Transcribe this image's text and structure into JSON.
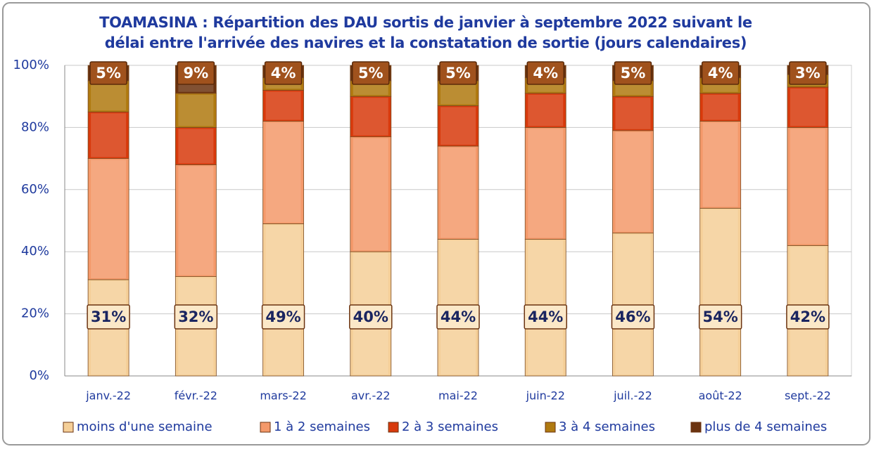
{
  "chart_data": {
    "type": "stacked_bar",
    "title": "TOAMASINA : Répartition des DAU sortis de janvier à septembre 2022 suivant le délai entre l'arrivée des navires et la constatation de sortie (jours calendaires)",
    "categories": [
      "janv.-22",
      "févr.-22",
      "mars-22",
      "avr.-22",
      "mai-22",
      "juin-22",
      "juil.-22",
      "août-22",
      "sept.-22"
    ],
    "series": [
      {
        "name": "moins d'une semaine",
        "color": "#f5cf98",
        "values": [
          31,
          32,
          49,
          40,
          44,
          44,
          46,
          54,
          42
        ],
        "value_labels": [
          "31%",
          "32%",
          "49%",
          "40%",
          "44%",
          "44%",
          "46%",
          "54%",
          "42%"
        ]
      },
      {
        "name": "1 à 2 semaines",
        "color": "#f4996a",
        "values": [
          39,
          36,
          33,
          37,
          30,
          36,
          33,
          28,
          38
        ]
      },
      {
        "name": "2 à 3 semaines",
        "color": "#d83a0c",
        "values": [
          15,
          12,
          10,
          13,
          13,
          11,
          11,
          9,
          13
        ]
      },
      {
        "name": "3 à 4 semaines",
        "color": "#b07a10",
        "values": [
          10,
          11,
          4,
          5,
          8,
          5,
          5,
          5,
          4
        ]
      },
      {
        "name": "plus de 4 semaines",
        "color": "#6b3310",
        "values": [
          5,
          9,
          4,
          5,
          5,
          4,
          5,
          4,
          3
        ],
        "value_labels": [
          "5%",
          "9%",
          "4%",
          "5%",
          "5%",
          "4%",
          "5%",
          "4%",
          "3%"
        ]
      }
    ],
    "ylim": [
      0,
      100
    ],
    "yticks": [
      {
        "value": 0,
        "label": "0%"
      },
      {
        "value": 20,
        "label": "20%"
      },
      {
        "value": 40,
        "label": "40%"
      },
      {
        "value": 60,
        "label": "60%"
      },
      {
        "value": 80,
        "label": "80%"
      },
      {
        "value": 100,
        "label": "100%"
      }
    ],
    "grid": true,
    "legend": "bottom"
  }
}
